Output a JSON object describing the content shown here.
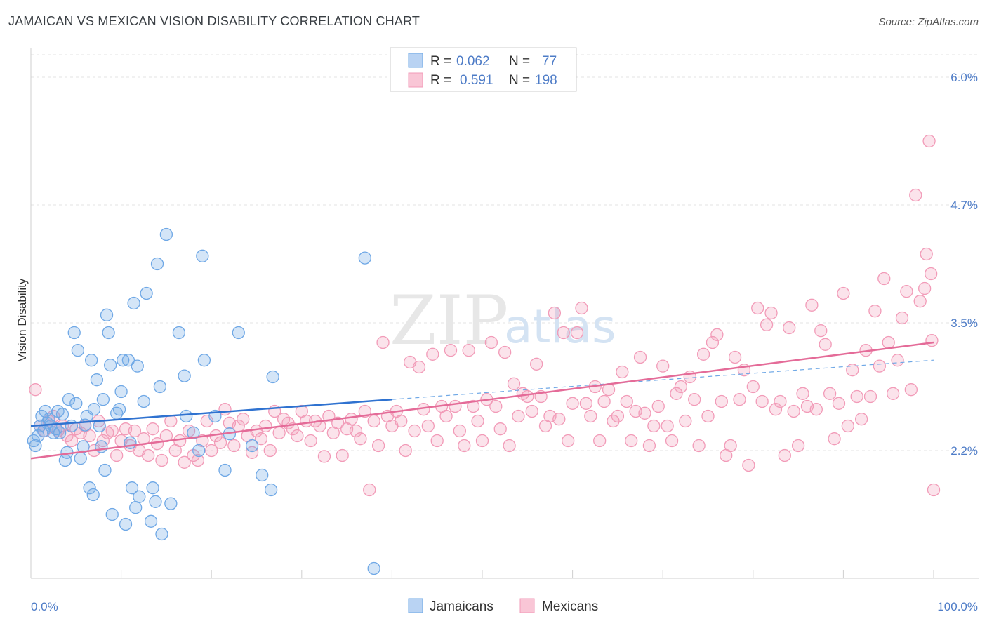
{
  "title": "JAMAICAN VS MEXICAN VISION DISABILITY CORRELATION CHART",
  "source": "Source: ZipAtlas.com",
  "watermark": {
    "zip": "ZIP",
    "atlas": "atlas"
  },
  "legend": {
    "rows": [
      {
        "r_label": "R =",
        "r_value": "0.062",
        "n_label": "N =",
        "n_value": "77",
        "color": "#6fa8e6"
      },
      {
        "r_label": "R =",
        "r_value": "0.591",
        "n_label": "N =",
        "n_value": "198",
        "color": "#f29bb8"
      }
    ]
  },
  "chart_data": {
    "type": "scatter",
    "title": "JAMAICAN VS MEXICAN VISION DISABILITY CORRELATION CHART",
    "xlabel": "",
    "ylabel": "Vision Disability",
    "xlim": [
      0,
      100
    ],
    "ylim": [
      0.9,
      6.3
    ],
    "x_tick_labels": [
      "0.0%",
      "100.0%"
    ],
    "y_ticks": [
      {
        "value": 2.2,
        "label": "2.2%"
      },
      {
        "value": 3.5,
        "label": "3.5%"
      },
      {
        "value": 4.7,
        "label": "4.7%"
      },
      {
        "value": 6.0,
        "label": "6.0%"
      }
    ],
    "grid": true,
    "legend_position": "bottom-center",
    "series": [
      {
        "name": "Jamaicans",
        "color": "#6fa8e6",
        "trend": {
          "x0": 0,
          "y0": 2.45,
          "x1": 40,
          "y1": 2.72,
          "dashed_to_x": 100,
          "dashed_to_y": 3.12
        },
        "points": [
          [
            0.3,
            2.3
          ],
          [
            0.5,
            2.25
          ],
          [
            0.8,
            2.35
          ],
          [
            1.0,
            2.45
          ],
          [
            1.2,
            2.55
          ],
          [
            1.4,
            2.4
          ],
          [
            1.6,
            2.6
          ],
          [
            1.8,
            2.48
          ],
          [
            2.0,
            2.52
          ],
          [
            2.2,
            2.45
          ],
          [
            2.5,
            2.38
          ],
          [
            2.8,
            2.42
          ],
          [
            3.0,
            2.6
          ],
          [
            3.2,
            2.38
          ],
          [
            3.5,
            2.57
          ],
          [
            3.8,
            2.1
          ],
          [
            4.0,
            2.18
          ],
          [
            4.2,
            2.72
          ],
          [
            4.5,
            2.45
          ],
          [
            4.8,
            3.4
          ],
          [
            5.0,
            2.68
          ],
          [
            5.2,
            3.22
          ],
          [
            5.5,
            2.12
          ],
          [
            5.8,
            2.24
          ],
          [
            6.0,
            2.46
          ],
          [
            6.2,
            2.55
          ],
          [
            6.5,
            1.82
          ],
          [
            6.7,
            3.12
          ],
          [
            6.9,
            1.75
          ],
          [
            7.0,
            2.62
          ],
          [
            7.3,
            2.92
          ],
          [
            7.6,
            2.45
          ],
          [
            7.8,
            2.24
          ],
          [
            8.0,
            2.72
          ],
          [
            8.2,
            2.0
          ],
          [
            8.4,
            3.58
          ],
          [
            8.6,
            3.4
          ],
          [
            8.8,
            3.07
          ],
          [
            9.0,
            1.55
          ],
          [
            9.5,
            2.58
          ],
          [
            9.8,
            2.62
          ],
          [
            10.0,
            2.8
          ],
          [
            10.2,
            3.12
          ],
          [
            10.5,
            1.45
          ],
          [
            10.8,
            3.12
          ],
          [
            11.0,
            2.28
          ],
          [
            11.2,
            1.82
          ],
          [
            11.4,
            3.7
          ],
          [
            11.6,
            1.62
          ],
          [
            11.8,
            3.06
          ],
          [
            12.0,
            1.73
          ],
          [
            12.5,
            2.7
          ],
          [
            12.8,
            3.8
          ],
          [
            13.3,
            1.48
          ],
          [
            13.5,
            1.82
          ],
          [
            13.8,
            1.68
          ],
          [
            14.0,
            4.1
          ],
          [
            14.3,
            2.85
          ],
          [
            14.5,
            1.35
          ],
          [
            15.0,
            4.4
          ],
          [
            15.5,
            1.66
          ],
          [
            16.4,
            3.4
          ],
          [
            17.0,
            2.96
          ],
          [
            17.2,
            2.55
          ],
          [
            18.0,
            2.38
          ],
          [
            18.6,
            2.2
          ],
          [
            19.0,
            4.18
          ],
          [
            19.2,
            3.12
          ],
          [
            20.4,
            2.55
          ],
          [
            21.5,
            2.0
          ],
          [
            22.0,
            2.37
          ],
          [
            23.0,
            3.4
          ],
          [
            24.5,
            2.25
          ],
          [
            25.6,
            1.95
          ],
          [
            26.6,
            1.8
          ],
          [
            26.8,
            2.95
          ],
          [
            37.0,
            4.16
          ],
          [
            38.0,
            1.0
          ]
        ]
      },
      {
        "name": "Mexicans",
        "color": "#f29bb8",
        "trend": {
          "x0": 0,
          "y0": 2.12,
          "x1": 100,
          "y1": 3.3
        },
        "points": [
          [
            0.5,
            2.82
          ],
          [
            1.0,
            2.45
          ],
          [
            1.5,
            2.4
          ],
          [
            2.0,
            2.5
          ],
          [
            2.5,
            2.55
          ],
          [
            3.0,
            2.4
          ],
          [
            3.5,
            2.45
          ],
          [
            4.0,
            2.35
          ],
          [
            4.5,
            2.3
          ],
          [
            5.0,
            2.42
          ],
          [
            5.5,
            2.38
          ],
          [
            6.0,
            2.45
          ],
          [
            6.5,
            2.35
          ],
          [
            7.0,
            2.2
          ],
          [
            7.5,
            2.5
          ],
          [
            8.0,
            2.3
          ],
          [
            8.5,
            2.38
          ],
          [
            9.0,
            2.4
          ],
          [
            9.5,
            2.15
          ],
          [
            10.0,
            2.3
          ],
          [
            10.5,
            2.42
          ],
          [
            11.0,
            2.25
          ],
          [
            11.5,
            2.4
          ],
          [
            12.0,
            2.2
          ],
          [
            12.5,
            2.32
          ],
          [
            13.0,
            2.15
          ],
          [
            13.5,
            2.42
          ],
          [
            14.0,
            2.27
          ],
          [
            14.5,
            2.1
          ],
          [
            15.0,
            2.35
          ],
          [
            15.5,
            2.5
          ],
          [
            16.0,
            2.2
          ],
          [
            16.5,
            2.3
          ],
          [
            17.0,
            2.08
          ],
          [
            17.5,
            2.4
          ],
          [
            18.0,
            2.15
          ],
          [
            18.5,
            2.1
          ],
          [
            19.0,
            2.3
          ],
          [
            19.5,
            2.5
          ],
          [
            20.0,
            2.2
          ],
          [
            20.5,
            2.35
          ],
          [
            21.0,
            2.28
          ],
          [
            21.5,
            2.62
          ],
          [
            22.0,
            2.48
          ],
          [
            22.5,
            2.25
          ],
          [
            23.0,
            2.45
          ],
          [
            23.5,
            2.52
          ],
          [
            24.0,
            2.35
          ],
          [
            24.5,
            2.18
          ],
          [
            25.0,
            2.4
          ],
          [
            25.5,
            2.32
          ],
          [
            26.0,
            2.45
          ],
          [
            26.5,
            2.2
          ],
          [
            27.0,
            2.6
          ],
          [
            27.5,
            2.38
          ],
          [
            28.0,
            2.52
          ],
          [
            28.5,
            2.48
          ],
          [
            29.0,
            2.42
          ],
          [
            29.5,
            2.35
          ],
          [
            30.0,
            2.6
          ],
          [
            30.5,
            2.5
          ],
          [
            31.0,
            2.3
          ],
          [
            31.5,
            2.5
          ],
          [
            32.0,
            2.45
          ],
          [
            32.5,
            2.14
          ],
          [
            33.0,
            2.55
          ],
          [
            33.5,
            2.38
          ],
          [
            34.0,
            2.48
          ],
          [
            34.5,
            2.15
          ],
          [
            35.0,
            2.42
          ],
          [
            35.5,
            2.52
          ],
          [
            36.0,
            2.4
          ],
          [
            36.5,
            2.32
          ],
          [
            37.0,
            2.6
          ],
          [
            37.5,
            1.8
          ],
          [
            38.0,
            2.5
          ],
          [
            38.5,
            2.25
          ],
          [
            39.0,
            3.3
          ],
          [
            39.5,
            2.55
          ],
          [
            40.0,
            2.45
          ],
          [
            40.5,
            2.6
          ],
          [
            41.0,
            2.5
          ],
          [
            41.5,
            2.2
          ],
          [
            42.0,
            3.1
          ],
          [
            42.5,
            2.4
          ],
          [
            43.0,
            3.05
          ],
          [
            43.5,
            2.62
          ],
          [
            44.0,
            2.45
          ],
          [
            44.5,
            3.18
          ],
          [
            45.0,
            2.3
          ],
          [
            45.5,
            2.65
          ],
          [
            46.0,
            2.55
          ],
          [
            46.5,
            3.22
          ],
          [
            47.0,
            2.65
          ],
          [
            47.5,
            2.4
          ],
          [
            48.0,
            2.25
          ],
          [
            48.5,
            3.22
          ],
          [
            49.0,
            2.65
          ],
          [
            49.5,
            2.5
          ],
          [
            50.0,
            2.3
          ],
          [
            50.5,
            2.72
          ],
          [
            51.0,
            3.3
          ],
          [
            51.5,
            2.65
          ],
          [
            52.0,
            2.42
          ],
          [
            52.5,
            3.2
          ],
          [
            53.0,
            2.25
          ],
          [
            53.5,
            2.88
          ],
          [
            54.0,
            2.55
          ],
          [
            54.5,
            2.78
          ],
          [
            55.0,
            2.75
          ],
          [
            55.5,
            2.6
          ],
          [
            56.0,
            3.08
          ],
          [
            56.5,
            2.75
          ],
          [
            57.0,
            2.45
          ],
          [
            57.5,
            2.55
          ],
          [
            58.0,
            3.6
          ],
          [
            58.5,
            2.52
          ],
          [
            59.0,
            3.4
          ],
          [
            59.5,
            2.3
          ],
          [
            60.0,
            2.68
          ],
          [
            60.5,
            3.4
          ],
          [
            61.0,
            3.65
          ],
          [
            61.5,
            2.68
          ],
          [
            62.0,
            2.55
          ],
          [
            62.5,
            2.85
          ],
          [
            63.0,
            2.3
          ],
          [
            63.5,
            2.7
          ],
          [
            64.0,
            2.82
          ],
          [
            64.5,
            2.5
          ],
          [
            65.0,
            2.55
          ],
          [
            65.5,
            3.0
          ],
          [
            66.0,
            2.7
          ],
          [
            66.5,
            2.3
          ],
          [
            67.0,
            2.6
          ],
          [
            67.5,
            3.15
          ],
          [
            68.0,
            2.58
          ],
          [
            68.5,
            2.25
          ],
          [
            69.0,
            2.45
          ],
          [
            69.5,
            2.65
          ],
          [
            70.0,
            3.06
          ],
          [
            70.5,
            2.45
          ],
          [
            71.0,
            2.3
          ],
          [
            71.5,
            2.78
          ],
          [
            72.0,
            2.85
          ],
          [
            72.5,
            2.5
          ],
          [
            73.0,
            2.95
          ],
          [
            73.5,
            2.72
          ],
          [
            74.0,
            2.25
          ],
          [
            74.5,
            3.18
          ],
          [
            75.0,
            2.55
          ],
          [
            75.5,
            3.3
          ],
          [
            76.0,
            3.38
          ],
          [
            76.5,
            2.7
          ],
          [
            77.0,
            2.15
          ],
          [
            77.5,
            2.25
          ],
          [
            78.0,
            3.15
          ],
          [
            78.5,
            2.72
          ],
          [
            79.0,
            3.02
          ],
          [
            79.5,
            2.05
          ],
          [
            80.0,
            2.85
          ],
          [
            80.5,
            3.65
          ],
          [
            81.0,
            2.7
          ],
          [
            81.5,
            3.48
          ],
          [
            82.0,
            3.6
          ],
          [
            82.5,
            2.62
          ],
          [
            83.0,
            2.7
          ],
          [
            83.5,
            2.15
          ],
          [
            84.0,
            3.45
          ],
          [
            84.5,
            2.6
          ],
          [
            85.0,
            2.25
          ],
          [
            85.5,
            2.78
          ],
          [
            86.0,
            2.65
          ],
          [
            86.5,
            3.68
          ],
          [
            87.0,
            2.62
          ],
          [
            87.5,
            3.42
          ],
          [
            88.0,
            3.28
          ],
          [
            88.5,
            2.78
          ],
          [
            89.0,
            2.32
          ],
          [
            89.5,
            2.68
          ],
          [
            90.0,
            3.8
          ],
          [
            90.5,
            2.45
          ],
          [
            91.0,
            3.02
          ],
          [
            91.5,
            2.75
          ],
          [
            92.0,
            2.52
          ],
          [
            92.5,
            3.22
          ],
          [
            93.0,
            2.75
          ],
          [
            93.5,
            3.62
          ],
          [
            94.0,
            3.06
          ],
          [
            94.5,
            3.95
          ],
          [
            95.0,
            3.3
          ],
          [
            95.5,
            2.78
          ],
          [
            96.0,
            3.12
          ],
          [
            96.5,
            3.55
          ],
          [
            97.0,
            3.82
          ],
          [
            97.5,
            2.82
          ],
          [
            98.0,
            4.8
          ],
          [
            98.5,
            3.72
          ],
          [
            99.0,
            3.85
          ],
          [
            99.2,
            4.2
          ],
          [
            99.5,
            5.35
          ],
          [
            99.7,
            4.0
          ],
          [
            99.8,
            3.32
          ],
          [
            100.0,
            1.8
          ]
        ]
      }
    ]
  }
}
